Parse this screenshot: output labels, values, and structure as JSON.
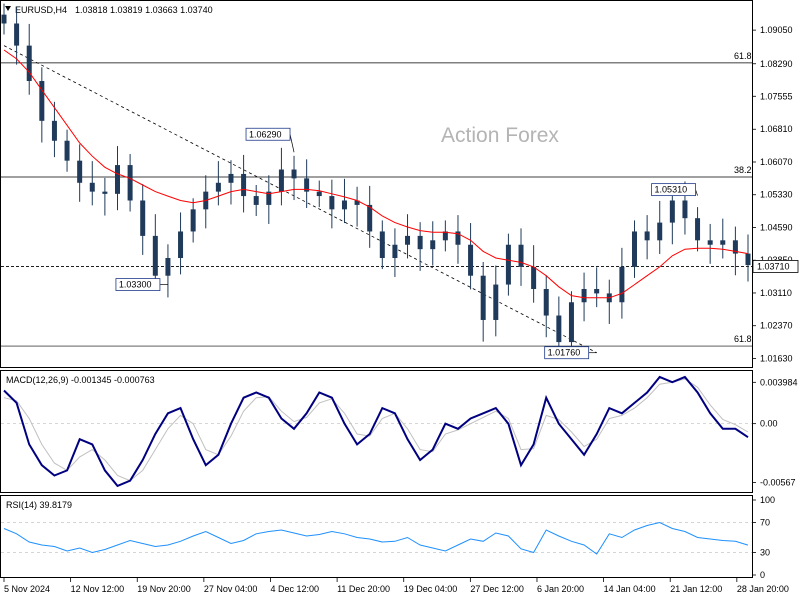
{
  "header": {
    "symbol_label": "EURUSD,H4",
    "ohlc_text": "1.03818 1.03819 1.03663 1.03740",
    "watermark": "Action Forex"
  },
  "price_panel": {
    "y_ticks": [
      "1.09050",
      "1.08290",
      "1.07555",
      "1.06810",
      "1.06070",
      "1.05330",
      "1.04590",
      "1.03850",
      "1.03110",
      "1.02370",
      "1.01630"
    ],
    "current_price": "1.03710",
    "ma_color": "#ff0000",
    "candle_color": "#1f3a5a"
  },
  "chart_data": [
    {
      "type": "line",
      "panel": "price",
      "title": "EURUSD,H4",
      "ylim": [
        1.0155,
        1.0955
      ],
      "x": [
        "5 Nov 2024",
        "12 Nov 12:00",
        "19 Nov 20:00",
        "27 Nov 04:00",
        "4 Dec 12:00",
        "11 Dec 20:00",
        "19 Dec 04:00",
        "27 Dec 12:00",
        "6 Jan 20:00",
        "14 Jan 04:00",
        "21 Jan 12:00",
        "28 Jan 20:00"
      ],
      "series_close": [
        1.092,
        1.087,
        1.079,
        1.07,
        1.0655,
        1.061,
        1.056,
        1.054,
        1.0535,
        1.06,
        1.052,
        1.044,
        1.035,
        1.039,
        1.045,
        1.05,
        1.054,
        1.056,
        1.058,
        1.053,
        1.051,
        1.054,
        1.059,
        1.057,
        1.054,
        1.053,
        1.05,
        1.052,
        1.051,
        1.045,
        1.039,
        1.042,
        1.044,
        1.041,
        1.043,
        1.045,
        1.042,
        1.035,
        1.025,
        1.033,
        1.042,
        1.037,
        1.032,
        1.026,
        1.02,
        1.029,
        1.032,
        1.031,
        1.029,
        1.037,
        1.045,
        1.043,
        1.047,
        1.052,
        1.048,
        1.043,
        1.042,
        1.043,
        1.04,
        1.0374
      ],
      "series_ma": [
        1.086,
        1.084,
        1.081,
        1.077,
        1.073,
        1.069,
        1.065,
        1.062,
        1.0595,
        1.058,
        1.057,
        1.0555,
        1.054,
        1.053,
        1.052,
        1.0515,
        1.052,
        1.053,
        1.054,
        1.0545,
        1.054,
        1.0535,
        1.054,
        1.0545,
        1.0545,
        1.0542,
        1.0535,
        1.0528,
        1.052,
        1.0505,
        1.0485,
        1.047,
        1.046,
        1.0452,
        1.0448,
        1.0448,
        1.0445,
        1.043,
        1.0405,
        1.039,
        1.0385,
        1.038,
        1.037,
        1.035,
        1.0325,
        1.0305,
        1.03,
        1.03,
        1.03,
        1.031,
        1.033,
        1.035,
        1.037,
        1.0395,
        1.041,
        1.0412,
        1.0412,
        1.041,
        1.0405,
        1.04
      ],
      "fib_levels": [
        {
          "label": "61.8",
          "value": 1.0831
        },
        {
          "label": "38.2",
          "value": 1.0573
        },
        {
          "label": "61.8",
          "value": 1.0191
        }
      ],
      "annotations": [
        {
          "label": "1.06290",
          "value": 1.0629
        },
        {
          "label": "1.03300",
          "value": 1.033
        },
        {
          "label": "1.05310",
          "value": 1.0531
        },
        {
          "label": "1.01760",
          "value": 1.0176
        }
      ],
      "current": 1.0371
    },
    {
      "type": "line",
      "panel": "macd",
      "title": "MACD(12,26,9) -0.001345 -0.000763",
      "ylim": [
        -0.0062,
        0.0044
      ],
      "y_ticks": [
        "0.003984",
        "0.00",
        "-0.00567"
      ],
      "series_macd": [
        0.0032,
        0.002,
        -0.002,
        -0.004,
        -0.005,
        -0.0045,
        -0.0015,
        -0.002,
        -0.0045,
        -0.006,
        -0.0055,
        -0.0035,
        -0.001,
        0.001,
        0.0015,
        -0.0015,
        -0.004,
        -0.003,
        0.0,
        0.0025,
        0.003,
        0.0025,
        0.0005,
        -0.0005,
        0.001,
        0.003,
        0.0025,
        0.0,
        -0.002,
        -0.001,
        0.0015,
        0.001,
        -0.0015,
        -0.0035,
        -0.0025,
        0.0,
        -0.0005,
        0.0005,
        0.001,
        0.0015,
        0.0,
        -0.004,
        -0.002,
        0.0025,
        0.0,
        -0.0015,
        -0.003,
        -0.001,
        0.0015,
        0.001,
        0.002,
        0.003,
        0.0045,
        0.004,
        0.0045,
        0.003,
        0.001,
        -0.0005,
        -0.0005,
        -0.0013
      ],
      "series_signal": [
        0.0025,
        0.0022,
        0.0005,
        -0.002,
        -0.0038,
        -0.0045,
        -0.0032,
        -0.0025,
        -0.0035,
        -0.005,
        -0.0055,
        -0.0045,
        -0.0025,
        -0.0005,
        0.0008,
        0.0,
        -0.0025,
        -0.003,
        -0.0012,
        0.0012,
        0.0025,
        0.0026,
        0.0012,
        0.0002,
        0.0006,
        0.002,
        0.0024,
        0.001,
        -0.001,
        -0.0012,
        0.0005,
        0.001,
        -0.0005,
        -0.0025,
        -0.0027,
        -0.001,
        -0.0006,
        0.0,
        0.0006,
        0.0012,
        0.0005,
        -0.0025,
        -0.0024,
        0.0008,
        0.0004,
        -0.0008,
        -0.0022,
        -0.0015,
        0.0005,
        0.0008,
        0.0015,
        0.0025,
        0.0038,
        0.004,
        0.0043,
        0.0035,
        0.0018,
        0.0004,
        -0.0001,
        -0.0008
      ]
    },
    {
      "type": "line",
      "panel": "rsi",
      "title": "RSI(14) 39.8179",
      "ylim": [
        0,
        100
      ],
      "y_ticks": [
        "100",
        "70",
        "30",
        "0"
      ],
      "levels": [
        70,
        30
      ],
      "series": [
        {
          "values": [
            62,
            55,
            44,
            40,
            38,
            32,
            36,
            30,
            34,
            40,
            46,
            42,
            38,
            40,
            45,
            52,
            58,
            50,
            42,
            46,
            55,
            58,
            60,
            56,
            52,
            54,
            58,
            55,
            50,
            48,
            44,
            45,
            50,
            40,
            36,
            32,
            40,
            48,
            45,
            56,
            52,
            35,
            30,
            60,
            52,
            45,
            40,
            28,
            55,
            50,
            60,
            66,
            70,
            62,
            58,
            50,
            48,
            46,
            45,
            39.8
          ]
        }
      ]
    }
  ],
  "styles": {
    "macd_color": "#000080",
    "signal_color": "#c0c0c0",
    "rsi_color": "#1e90ff",
    "grid_color": "#c8c8c8",
    "trend_color": "#000000"
  }
}
